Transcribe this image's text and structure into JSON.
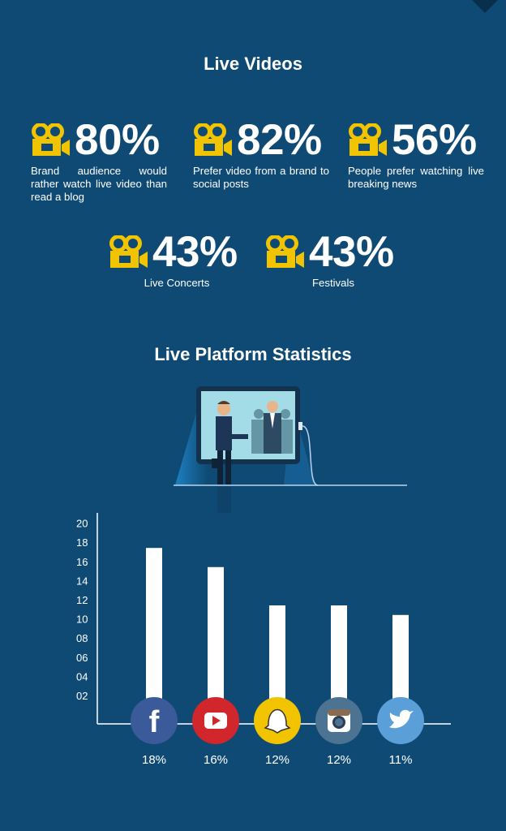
{
  "headings": {
    "videos": "Live Videos",
    "platform": "Live Platform Statistics"
  },
  "stats": [
    {
      "value": "80%",
      "caption": "Brand audience would rather watch live video than read a blog",
      "icon": "video-camera-icon"
    },
    {
      "value": "82%",
      "caption": "Prefer video from a brand to social posts",
      "icon": "video-camera-icon"
    },
    {
      "value": "56%",
      "caption": "People prefer watching live breaking news",
      "icon": "video-camera-icon"
    },
    {
      "value": "43%",
      "caption": "Live Concerts",
      "icon": "video-camera-icon"
    },
    {
      "value": "43%",
      "caption": "Festivals",
      "icon": "video-camera-icon"
    }
  ],
  "colors": {
    "background": "#0f4a74",
    "accent_yellow": "#f2c400",
    "facebook": "#3b5a9a",
    "youtube": "#d0262c",
    "snapchat": "#f2c400",
    "instagram": "#4d7392",
    "twitter": "#5a9fd8"
  },
  "chart_data": {
    "type": "bar",
    "categories": [
      "Facebook",
      "YouTube",
      "Snapchat",
      "Instagram",
      "Twitter"
    ],
    "category_icons": [
      "facebook-icon",
      "youtube-icon",
      "snapchat-icon",
      "instagram-icon",
      "twitter-icon"
    ],
    "values": [
      18,
      16,
      12,
      12,
      11
    ],
    "value_labels": [
      "18%",
      "16%",
      "12%",
      "12%",
      "11%"
    ],
    "y_ticks": [
      "02",
      "04",
      "06",
      "08",
      "10",
      "12",
      "14",
      "16",
      "18",
      "20"
    ],
    "ylim": [
      0,
      20
    ],
    "grid": false,
    "legend": "none",
    "title": "",
    "xlabel": "",
    "ylabel": ""
  }
}
